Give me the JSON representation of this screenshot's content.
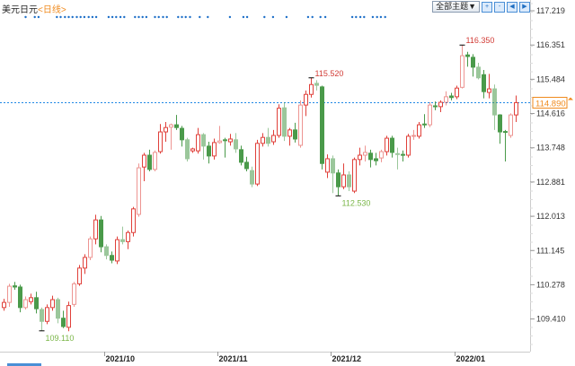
{
  "header": {
    "title": "美元日元",
    "period": "<日线>",
    "theme_button": "全部主题▼",
    "icons": [
      "zoom-in-icon",
      "zoom-out-icon",
      "move-left-icon",
      "move-right-icon"
    ]
  },
  "colors": {
    "up": "#e0403a",
    "down": "#4a9a4a",
    "last_price": "#f08a1c",
    "price_line": "#1e88e5",
    "marker": "#1e6fc8"
  },
  "chart_data": {
    "type": "candlestick",
    "ylim": [
      109.1,
      117.3
    ],
    "y_ticks": [
      "117.219",
      "116.351",
      "115.484",
      "114.616",
      "113.748",
      "112.881",
      "112.013",
      "111.145",
      "110.278",
      "109.410"
    ],
    "x_ticks": [
      {
        "label": "2021/10",
        "index": 19
      },
      {
        "label": "2021/11",
        "index": 40
      },
      {
        "label": "2021/12",
        "index": 61
      },
      {
        "label": "2022/01",
        "index": 84
      }
    ],
    "last_price": "114.890",
    "annotations": [
      {
        "text": "116.350",
        "index": 85,
        "value": 116.35,
        "type": "high"
      },
      {
        "text": "115.520",
        "index": 57,
        "value": 115.52,
        "type": "high"
      },
      {
        "text": "112.530",
        "index": 62,
        "value": 112.53,
        "type": "low"
      },
      {
        "text": "109.110",
        "index": 7,
        "value": 109.11,
        "type": "low"
      }
    ],
    "event_markers": [
      4,
      5.7,
      6.4,
      9.8,
      10.5,
      11.3,
      12,
      12.7,
      13.5,
      14.2,
      14.9,
      15.7,
      16.4,
      17.1,
      19.4,
      20.1,
      20.8,
      21.6,
      22.3,
      24.3,
      25,
      25.7,
      26.4,
      28,
      28.7,
      29.5,
      30.2,
      32.3,
      33,
      33.7,
      34.5,
      36.3,
      37.8,
      41.9,
      44.4,
      45.1,
      48.3,
      49.9,
      52.4,
      56.4,
      57.2,
      58.7,
      59.6,
      64.6,
      65.3,
      66.1,
      66.8,
      68.4,
      69.2,
      69.9,
      70.7
    ],
    "ohlc": [
      [
        109.7,
        109.92,
        109.62,
        109.83
      ],
      [
        109.83,
        110.3,
        109.72,
        110.24
      ],
      [
        110.25,
        110.35,
        110.15,
        110.22
      ],
      [
        110.22,
        110.28,
        109.58,
        109.7
      ],
      [
        109.7,
        109.98,
        109.65,
        109.9
      ],
      [
        109.85,
        110.05,
        109.78,
        109.95
      ],
      [
        109.95,
        110.1,
        109.55,
        109.67
      ],
      [
        109.65,
        109.7,
        109.11,
        109.35
      ],
      [
        109.35,
        109.78,
        109.28,
        109.7
      ],
      [
        109.7,
        110.0,
        109.62,
        109.9
      ],
      [
        109.9,
        109.95,
        109.3,
        109.43
      ],
      [
        109.43,
        109.62,
        109.18,
        109.22
      ],
      [
        109.2,
        109.85,
        109.1,
        109.75
      ],
      [
        109.78,
        110.35,
        109.72,
        110.3
      ],
      [
        110.3,
        110.78,
        110.25,
        110.7
      ],
      [
        110.7,
        111.05,
        110.55,
        110.97
      ],
      [
        110.97,
        111.5,
        110.9,
        111.44
      ],
      [
        111.44,
        112.05,
        111.3,
        111.92
      ],
      [
        111.92,
        112.02,
        111.1,
        111.24
      ],
      [
        111.24,
        111.3,
        110.92,
        111.02
      ],
      [
        111.02,
        111.12,
        110.82,
        110.9
      ],
      [
        110.88,
        111.5,
        110.8,
        111.42
      ],
      [
        111.42,
        111.75,
        111.3,
        111.37
      ],
      [
        111.37,
        111.65,
        111.18,
        111.6
      ],
      [
        111.6,
        112.25,
        111.5,
        112.2
      ],
      [
        112.06,
        113.35,
        112.0,
        113.24
      ],
      [
        113.26,
        113.62,
        112.9,
        113.56
      ],
      [
        113.56,
        113.7,
        113.15,
        113.2
      ],
      [
        113.2,
        113.68,
        113.15,
        113.63
      ],
      [
        113.65,
        114.35,
        113.6,
        114.15
      ],
      [
        114.15,
        114.4,
        113.9,
        114.26
      ],
      [
        114.27,
        114.36,
        113.7,
        114.33
      ],
      [
        114.33,
        114.58,
        114.2,
        114.26
      ],
      [
        114.24,
        114.3,
        113.78,
        113.95
      ],
      [
        113.95,
        114.0,
        113.4,
        113.47
      ],
      [
        113.67,
        113.75,
        113.62,
        113.72
      ],
      [
        113.67,
        114.25,
        113.6,
        114.08
      ],
      [
        114.08,
        114.12,
        113.45,
        113.79
      ],
      [
        113.79,
        113.9,
        113.35,
        113.54
      ],
      [
        113.54,
        113.98,
        113.45,
        113.88
      ],
      [
        113.88,
        114.3,
        113.85,
        113.92
      ],
      [
        113.95,
        114.0,
        113.5,
        113.93
      ],
      [
        113.9,
        114.1,
        113.8,
        113.97
      ],
      [
        113.95,
        114.12,
        113.62,
        113.72
      ],
      [
        113.7,
        113.8,
        113.3,
        113.38
      ],
      [
        113.38,
        113.52,
        113.15,
        113.22
      ],
      [
        113.17,
        113.27,
        112.75,
        112.83
      ],
      [
        112.83,
        113.95,
        112.78,
        113.86
      ],
      [
        113.86,
        114.12,
        113.78,
        114.01
      ],
      [
        114.01,
        114.25,
        113.78,
        113.86
      ],
      [
        113.9,
        114.2,
        113.82,
        114.06
      ],
      [
        114.06,
        114.85,
        114.0,
        114.75
      ],
      [
        114.76,
        114.9,
        113.92,
        114.04
      ],
      [
        114.04,
        114.25,
        113.8,
        114.2
      ],
      [
        114.2,
        114.38,
        113.88,
        113.97
      ],
      [
        113.81,
        114.95,
        113.75,
        114.83
      ],
      [
        114.83,
        115.2,
        114.55,
        115.1
      ],
      [
        115.1,
        115.52,
        115.02,
        115.35
      ],
      [
        115.38,
        115.46,
        115.2,
        115.33
      ],
      [
        115.29,
        115.32,
        113.2,
        113.35
      ],
      [
        113.13,
        113.58,
        112.98,
        113.47
      ],
      [
        113.47,
        113.55,
        112.6,
        113.11
      ],
      [
        113.11,
        113.2,
        112.53,
        112.76
      ],
      [
        112.76,
        113.35,
        112.7,
        113.06
      ],
      [
        113.06,
        113.15,
        112.65,
        112.76
      ],
      [
        112.65,
        113.5,
        112.6,
        113.45
      ],
      [
        113.45,
        113.75,
        113.3,
        113.56
      ],
      [
        113.56,
        113.8,
        113.4,
        113.63
      ],
      [
        113.61,
        113.7,
        113.25,
        113.45
      ],
      [
        113.47,
        113.62,
        113.3,
        113.42
      ],
      [
        113.49,
        113.7,
        113.38,
        113.65
      ],
      [
        113.65,
        114.05,
        113.55,
        113.99
      ],
      [
        113.99,
        114.05,
        113.5,
        113.63
      ],
      [
        113.6,
        113.75,
        113.2,
        113.59
      ],
      [
        113.58,
        113.68,
        113.4,
        113.56
      ],
      [
        113.56,
        114.1,
        113.5,
        114.04
      ],
      [
        114.04,
        114.2,
        113.95,
        114.06
      ],
      [
        114.04,
        114.4,
        113.98,
        114.33
      ],
      [
        114.35,
        114.6,
        114.25,
        114.33
      ],
      [
        114.33,
        114.9,
        114.27,
        114.83
      ],
      [
        114.81,
        114.92,
        114.7,
        114.79
      ],
      [
        114.79,
        114.95,
        114.65,
        114.9
      ],
      [
        114.9,
        115.18,
        114.82,
        115.04
      ],
      [
        115.06,
        115.14,
        114.95,
        115.02
      ],
      [
        115.04,
        115.32,
        114.98,
        115.26
      ],
      [
        115.28,
        116.35,
        115.25,
        116.08
      ],
      [
        116.1,
        116.18,
        115.8,
        116.06
      ],
      [
        116.04,
        116.12,
        115.55,
        115.79
      ],
      [
        115.79,
        115.9,
        115.48,
        115.52
      ],
      [
        115.6,
        115.72,
        115.0,
        115.17
      ],
      [
        115.15,
        115.62,
        115.0,
        115.24
      ],
      [
        115.24,
        115.35,
        114.2,
        114.58
      ],
      [
        114.58,
        114.6,
        113.85,
        114.15
      ],
      [
        114.16,
        114.2,
        113.4,
        114.14
      ],
      [
        114.06,
        114.62,
        114.0,
        114.58
      ],
      [
        114.58,
        115.07,
        114.4,
        114.89
      ]
    ]
  }
}
